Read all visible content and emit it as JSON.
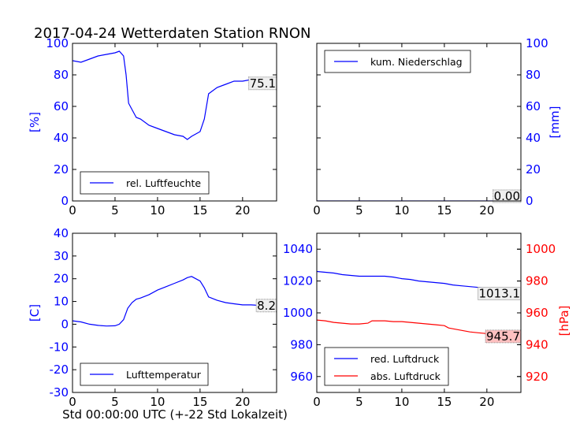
{
  "figure": {
    "title": "2017-04-24 Wetterdaten Station RNON",
    "xlabel": "Std 00:00:00 UTC (+-22 Std Lokalzeit)"
  },
  "colors": {
    "blue": "#0000ff",
    "red": "#ff0000",
    "black": "#000000",
    "annotation_bg": "#eeeeee",
    "annotation_bg_red": "#ffc0c0"
  },
  "chart_data": [
    {
      "id": "humidity",
      "type": "line",
      "xlim": [
        0,
        24
      ],
      "ylim": [
        0,
        100
      ],
      "xticks": [
        0,
        5,
        10,
        15,
        20
      ],
      "yticks": [
        0,
        20,
        40,
        60,
        80,
        100
      ],
      "ylabel": "[%]",
      "legend": "bottom-left",
      "series": [
        {
          "name": "rel. Luftfeuchte",
          "color": "#0000ff",
          "x": [
            0,
            1,
            2,
            3,
            4,
            5,
            5.5,
            6,
            6.3,
            6.6,
            7,
            7.5,
            8,
            9,
            10,
            11,
            12,
            13,
            13.5,
            14,
            15,
            15.5,
            16,
            17,
            18,
            19,
            20,
            21,
            22,
            23,
            23.5
          ],
          "y": [
            89,
            88,
            90,
            92,
            93,
            94,
            95,
            92,
            80,
            62,
            58,
            53,
            52,
            48,
            46,
            44,
            42,
            41,
            39,
            41,
            44,
            52,
            68,
            72,
            74,
            76,
            76,
            77,
            77,
            76,
            75
          ]
        }
      ],
      "annotation": {
        "text": "75.1",
        "value": 75.1
      }
    },
    {
      "id": "precip",
      "type": "line",
      "xlim": [
        0,
        24
      ],
      "ylim": [
        0,
        100
      ],
      "xticks": [
        0,
        5,
        10,
        15,
        20
      ],
      "yticks": [
        0,
        20,
        40,
        60,
        80,
        100
      ],
      "ylabel": "[mm]",
      "legend": "top-left",
      "series": [
        {
          "name": "kum. Niederschlag",
          "color": "#0000ff",
          "x": [
            0,
            24
          ],
          "y": [
            0,
            0
          ]
        }
      ],
      "annotation": {
        "text": "0.00",
        "value": 0
      }
    },
    {
      "id": "temp",
      "type": "line",
      "xlim": [
        0,
        24
      ],
      "ylim": [
        -30,
        40
      ],
      "xticks": [
        0,
        5,
        10,
        15,
        20
      ],
      "yticks": [
        -30,
        -20,
        -10,
        0,
        10,
        20,
        30,
        40
      ],
      "ylabel": "[C]",
      "legend": "bottom-left",
      "series": [
        {
          "name": "Lufttemperatur",
          "color": "#0000ff",
          "x": [
            0,
            1,
            2,
            3,
            4,
            5,
            5.5,
            6,
            6.5,
            7,
            7.5,
            8,
            9,
            10,
            11,
            12,
            13,
            13.5,
            14,
            15,
            15.5,
            16,
            17,
            18,
            19,
            20,
            21,
            22,
            23,
            23.5
          ],
          "y": [
            1.5,
            1,
            0,
            -0.5,
            -0.8,
            -0.7,
            0,
            2,
            7,
            9.5,
            11,
            11.5,
            13,
            15,
            16.5,
            18,
            19.5,
            20.5,
            21,
            19,
            16,
            12,
            10.5,
            9.5,
            9,
            8.5,
            8.5,
            8.3,
            8.2,
            8.2
          ]
        }
      ],
      "annotation": {
        "text": "8.2",
        "value": 8.2
      }
    },
    {
      "id": "pressure",
      "type": "line",
      "xlim": [
        0,
        24
      ],
      "ylim": [
        950,
        1050
      ],
      "xticks": [
        0,
        5,
        10,
        15,
        20
      ],
      "yticks": [
        960,
        980,
        1000,
        1020,
        1040
      ],
      "ylabel": "",
      "y2lim": [
        910,
        1010
      ],
      "y2ticks": [
        920,
        940,
        960,
        980,
        1000
      ],
      "y2label": "[hPa]",
      "legend": "bottom-left",
      "series": [
        {
          "name": "red. Luftdruck",
          "color": "#0000ff",
          "axis": "left",
          "x": [
            0,
            1,
            2,
            3,
            4,
            5,
            6,
            7,
            8,
            9,
            10,
            11,
            12,
            13,
            14,
            15,
            16,
            17,
            18,
            19,
            20,
            21,
            22,
            23,
            23.5
          ],
          "y": [
            1026,
            1025.5,
            1025,
            1024,
            1023.5,
            1023,
            1023,
            1023,
            1023,
            1022.5,
            1021.5,
            1021,
            1020,
            1019.5,
            1019,
            1018.5,
            1017.5,
            1017,
            1016.5,
            1016,
            1015.5,
            1015.2,
            1015,
            1013.5,
            1013.1
          ]
        },
        {
          "name": "abs. Luftdruck",
          "color": "#ff0000",
          "axis": "right",
          "x": [
            0,
            1,
            2,
            3,
            4,
            5,
            6,
            6.5,
            7,
            8,
            9,
            10,
            11,
            12,
            13,
            14,
            15,
            15.5,
            16,
            17,
            18,
            19,
            20,
            21,
            22,
            23,
            23.5
          ],
          "y": [
            955.5,
            955,
            954,
            953.5,
            953,
            953,
            953.5,
            955,
            955,
            955,
            954.5,
            954.5,
            954,
            953.5,
            953,
            952.5,
            952,
            950.5,
            950,
            949,
            948,
            947.5,
            947,
            946.5,
            946.2,
            945.8,
            945.7
          ]
        }
      ],
      "annotation": {
        "text": "1013.1",
        "value": 1013.1
      },
      "annotation2": {
        "text": "945.7",
        "value": 945.7
      }
    }
  ]
}
